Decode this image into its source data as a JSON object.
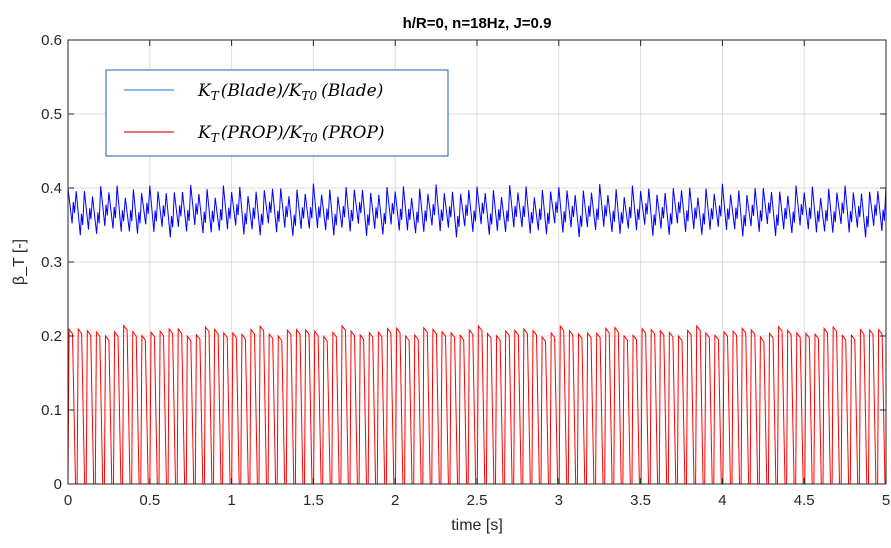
{
  "chart_data": {
    "type": "line",
    "title": "h/R=0, n=18Hz, J=0.9",
    "xlabel": "time [s]",
    "ylabel": "β_T [-]",
    "xlim": [
      0,
      5
    ],
    "ylim": [
      0,
      0.6
    ],
    "xticks": [
      0,
      0.5,
      1,
      1.5,
      2,
      2.5,
      3,
      3.5,
      4,
      4.5,
      5
    ],
    "yticks": [
      0,
      0.1,
      0.2,
      0.3,
      0.4,
      0.5,
      0.6
    ],
    "grid": true,
    "legend_position": "top-left",
    "series": [
      {
        "name": "K_T(Blade)/K_T0(Blade)",
        "color": "#0000ff",
        "legend_color": "#4a8fd8",
        "periodic_pattern": {
          "period_s": 0.05,
          "waveform": "sawtooth",
          "min": 0.335,
          "max": 0.4,
          "mean": 0.372
        }
      },
      {
        "name": "K_T(PROP)/K_T0(PROP)",
        "color": "#ff0000",
        "legend_color": "#e02020",
        "periodic_pattern": {
          "period_s": 0.0556,
          "waveform": "pulse",
          "min": 0.0,
          "max": 0.212,
          "mean": 0.105
        }
      }
    ]
  },
  "legend": {
    "entries": [
      {
        "main": "K",
        "sub": "T",
        "arg": "(Blade)",
        "slash": "/",
        "main2": "K",
        "sub2": "T0",
        "arg2": "(Blade)"
      },
      {
        "main": "K",
        "sub": "T",
        "arg": "(PROP)",
        "slash": "/",
        "main2": "K",
        "sub2": "T0",
        "arg2": "(PROP)"
      }
    ]
  }
}
